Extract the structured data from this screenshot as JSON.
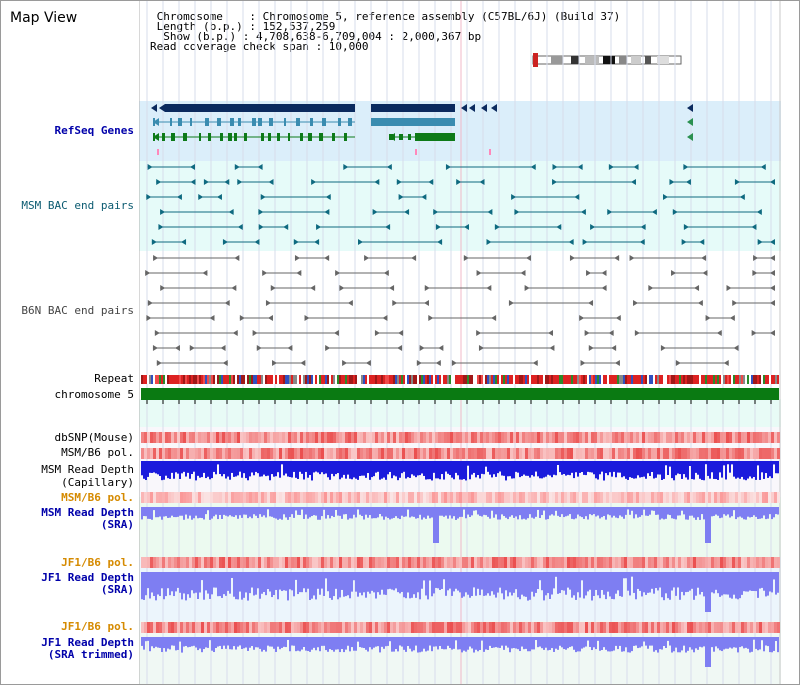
{
  "view_title": "Map View",
  "info": {
    "line1": " Chromosome    : Chromosome 5, reference assembly (C57BL/6J) (Build 37)",
    "line2": " Length (b.p.) : 152,537,259",
    "line3": "  Show (b.p.) : 4,708,638-6,709,004 : 2,000,367 bp",
    "line4": "Read coverage check span : 10,000"
  },
  "tracks": {
    "refseq": "RefSeq Genes",
    "msm_bac": "MSM BAC end pairs",
    "b6n_bac": "B6N BAC end pairs",
    "repeat": "Repeat",
    "chromosome": "chromosome 5",
    "dbsnp": "dbSNP(Mouse)",
    "msm_b6_pol_1": "MSM/B6 pol.",
    "msm_depth_cap_1": "MSM Read Depth",
    "msm_depth_cap_2": "(Capillary)",
    "msm_b6_pol_2": "MSM/B6 pol.",
    "msm_depth_sra_1": "MSM Read Depth",
    "msm_depth_sra_2": "(SRA)",
    "jf1_b6_pol_1": "JF1/B6 pol.",
    "jf1_depth_sra_1": "JF1 Read Depth",
    "jf1_depth_sra_2": "(SRA)",
    "jf1_b6_pol_2": "JF1/B6 pol.",
    "jf1_depth_trim_1": "JF1 Read Depth",
    "jf1_depth_trim_2": "(SRA trimmed)"
  },
  "axis_ticks": [
    "4800000",
    "5200000",
    "5600000",
    "6000000",
    "6400000"
  ],
  "colors": {
    "refseq_navy": "#0b2a5e",
    "refseq_teal": "#3a8cb0",
    "refseq_green": "#0d7a18",
    "msm_bac": "#0f6a80",
    "b6n_bac": "#666666",
    "chromosome_bar": "#0a7a12",
    "depth_blue": "#1b1bdc",
    "depth_light_blue": "#7e7ef2",
    "pol_red": "#f26a6a"
  }
}
